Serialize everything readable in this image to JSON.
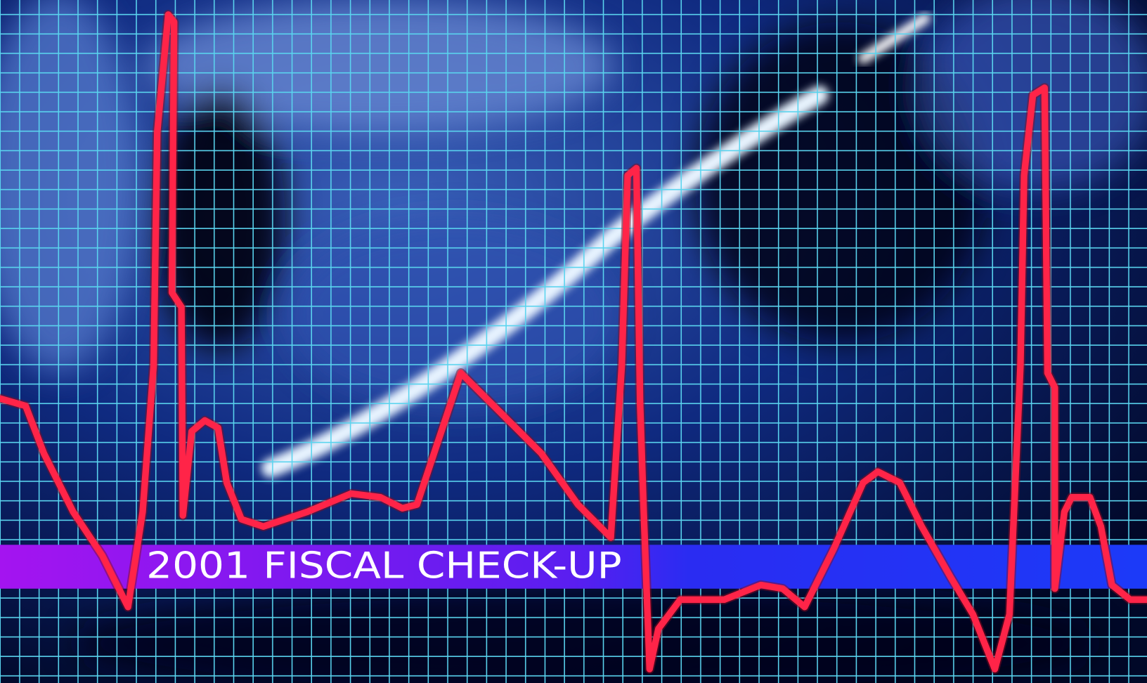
{
  "banner": {
    "text": "2001 FISCAL CHECK-UP"
  }
}
